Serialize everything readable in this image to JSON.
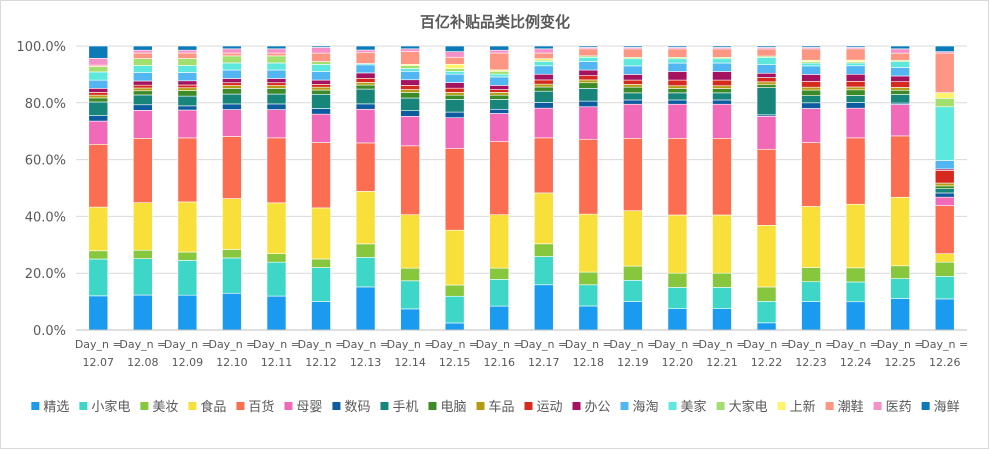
{
  "chart_data": {
    "type": "bar",
    "stacked": "percent",
    "title": "百亿补贴品类比例变化",
    "xlabel": "",
    "ylabel": "",
    "ylim": [
      0,
      100
    ],
    "yticks": [
      "0.0%",
      "20.0%",
      "40.0%",
      "60.0%",
      "80.0%",
      "100.0%"
    ],
    "ytick_values": [
      0,
      20,
      40,
      60,
      80,
      100
    ],
    "grid": true,
    "legend_position": "bottom",
    "categories": [
      "Day_n = 12.07",
      "Day_n = 12.08",
      "Day_n = 12.09",
      "Day_n = 12.10",
      "Day_n = 12.11",
      "Day_n = 12.12",
      "Day_n = 12.13",
      "Day_n = 12.14",
      "Day_n = 12.15",
      "Day_n = 12.16",
      "Day_n = 12.17",
      "Day_n = 12.18",
      "Day_n = 12.19",
      "Day_n = 12.20",
      "Day_n = 12.21",
      "Day_n = 12.22",
      "Day_n = 12.23",
      "Day_n = 12.24",
      "Day_n = 12.25",
      "Day_n = 12.26"
    ],
    "category_lines": [
      [
        "Day_n =",
        "12.07"
      ],
      [
        "Day_n =",
        "12.08"
      ],
      [
        "Day_n =",
        "12.09"
      ],
      [
        "Day_n =",
        "12.10"
      ],
      [
        "Day_n =",
        "12.11"
      ],
      [
        "Day_n =",
        "12.12"
      ],
      [
        "Day_n =",
        "12.13"
      ],
      [
        "Day_n =",
        "12.14"
      ],
      [
        "Day_n =",
        "12.15"
      ],
      [
        "Day_n =",
        "12.16"
      ],
      [
        "Day_n =",
        "12.17"
      ],
      [
        "Day_n =",
        "12.18"
      ],
      [
        "Day_n =",
        "12.19"
      ],
      [
        "Day_n =",
        "12.20"
      ],
      [
        "Day_n =",
        "12.21"
      ],
      [
        "Day_n =",
        "12.22"
      ],
      [
        "Day_n =",
        "12.23"
      ],
      [
        "Day_n =",
        "12.24"
      ],
      [
        "Day_n =",
        "12.25"
      ],
      [
        "Day_n =",
        "12.26"
      ]
    ],
    "series": [
      {
        "name": "精选",
        "color": "#1a9bef",
        "values": [
          12.5,
          12.5,
          12.5,
          13.0,
          12.0,
          10.0,
          16.0,
          7.5,
          2.5,
          8.5,
          16.0,
          8.5,
          10.0,
          7.5,
          7.5,
          2.5,
          10.0,
          10.0,
          11.0,
          11.0
        ]
      },
      {
        "name": "小家电",
        "color": "#3ed7c7",
        "values": [
          13.5,
          13.0,
          12.5,
          12.5,
          12.0,
          12.0,
          11.0,
          10.0,
          9.5,
          9.5,
          10.0,
          7.5,
          7.5,
          7.5,
          7.5,
          7.5,
          7.0,
          7.0,
          7.0,
          8.0
        ]
      },
      {
        "name": "美妆",
        "color": "#86c73e",
        "values": [
          3.0,
          3.0,
          3.0,
          3.0,
          3.0,
          3.0,
          5.0,
          4.5,
          4.0,
          4.0,
          4.5,
          4.5,
          5.0,
          5.0,
          5.0,
          5.0,
          5.0,
          5.0,
          4.5,
          5.0
        ]
      },
      {
        "name": "食品",
        "color": "#f9df3a",
        "values": [
          16.0,
          17.0,
          18.0,
          18.0,
          18.0,
          18.0,
          19.5,
          19.0,
          19.5,
          19.0,
          18.0,
          20.5,
          19.5,
          20.5,
          20.5,
          21.5,
          21.5,
          22.5,
          24.0,
          3.0
        ]
      },
      {
        "name": "百货",
        "color": "#fb6e52",
        "values": [
          23.0,
          23.0,
          23.0,
          22.0,
          23.0,
          23.0,
          18.0,
          24.5,
          29.0,
          26.0,
          19.5,
          26.5,
          25.5,
          27.0,
          27.0,
          26.5,
          22.5,
          23.5,
          21.5,
          17.0
        ]
      },
      {
        "name": "母婴",
        "color": "#f06ab7",
        "values": [
          8.5,
          10.0,
          10.0,
          9.5,
          10.0,
          10.0,
          12.5,
          10.5,
          11.0,
          10.0,
          10.5,
          11.5,
          12.0,
          12.0,
          12.0,
          11.5,
          12.0,
          10.5,
          11.0,
          3.0
        ]
      },
      {
        "name": "数码",
        "color": "#0d5c9f",
        "values": [
          2.0,
          2.0,
          1.5,
          2.0,
          2.0,
          2.0,
          2.0,
          2.0,
          2.0,
          1.5,
          2.0,
          2.0,
          1.5,
          1.5,
          1.5,
          0.5,
          2.0,
          2.0,
          0.5,
          1.5
        ]
      },
      {
        "name": "手机",
        "color": "#17857a",
        "values": [
          5.0,
          3.5,
          3.5,
          3.5,
          3.5,
          5.0,
          5.5,
          4.5,
          4.5,
          3.5,
          4.0,
          4.5,
          2.5,
          2.5,
          2.5,
          9.5,
          2.5,
          2.5,
          3.0,
          1.5
        ]
      },
      {
        "name": "电脑",
        "color": "#3c8a28",
        "values": [
          1.5,
          1.5,
          2.0,
          2.0,
          2.0,
          1.5,
          1.5,
          2.0,
          1.5,
          1.5,
          1.5,
          2.0,
          2.0,
          1.5,
          1.5,
          1.0,
          2.0,
          2.0,
          1.5,
          1.0
        ]
      },
      {
        "name": "车品",
        "color": "#b39b12",
        "values": [
          1.0,
          1.0,
          1.0,
          1.0,
          1.0,
          1.0,
          1.0,
          1.0,
          1.0,
          1.0,
          1.0,
          1.0,
          1.0,
          1.0,
          1.0,
          1.0,
          1.0,
          1.0,
          1.0,
          1.0
        ]
      },
      {
        "name": "运动",
        "color": "#d62a1f",
        "values": [
          1.0,
          1.0,
          1.0,
          1.0,
          1.0,
          1.0,
          1.5,
          1.5,
          1.5,
          1.0,
          1.5,
          1.5,
          1.5,
          2.0,
          2.0,
          1.5,
          2.0,
          2.0,
          2.0,
          4.5
        ]
      },
      {
        "name": "办公",
        "color": "#a3135f",
        "values": [
          1.5,
          1.5,
          1.5,
          1.5,
          1.5,
          1.5,
          2.0,
          2.0,
          2.0,
          1.5,
          2.0,
          2.0,
          2.0,
          3.0,
          3.0,
          1.5,
          2.5,
          2.5,
          2.0,
          0.5
        ]
      },
      {
        "name": "海淘",
        "color": "#52b6f2",
        "values": [
          3.0,
          3.0,
          3.0,
          3.0,
          3.0,
          3.0,
          3.0,
          3.0,
          3.0,
          3.0,
          3.0,
          3.0,
          3.0,
          3.0,
          3.0,
          3.0,
          3.0,
          3.0,
          3.0,
          3.0
        ]
      },
      {
        "name": "美家",
        "color": "#5ce8dd",
        "values": [
          3.0,
          2.5,
          2.5,
          2.5,
          2.5,
          2.5,
          0.5,
          1.0,
          1.0,
          1.0,
          1.5,
          1.5,
          2.5,
          1.5,
          1.5,
          2.5,
          1.0,
          1.0,
          2.0,
          19.0
        ]
      },
      {
        "name": "大家电",
        "color": "#a3df6e",
        "values": [
          2.0,
          2.5,
          2.5,
          2.5,
          2.5,
          1.0,
          0.0,
          1.0,
          1.0,
          1.0,
          0.5,
          0.5,
          0.5,
          0.5,
          0.5,
          0.5,
          0.5,
          0.5,
          0.5,
          3.0
        ]
      },
      {
        "name": "上新",
        "color": "#fff36b",
        "values": [
          0.0,
          0.0,
          0.0,
          0.0,
          0.0,
          0.0,
          0.0,
          0.5,
          1.5,
          0.5,
          0.5,
          0.0,
          0.0,
          0.0,
          0.0,
          0.0,
          0.5,
          0.5,
          0.0,
          2.0
        ]
      },
      {
        "name": "潮鞋",
        "color": "#fd9783",
        "values": [
          0.5,
          2.0,
          2.0,
          1.0,
          1.0,
          3.0,
          4.0,
          4.5,
          2.5,
          6.0,
          2.0,
          2.5,
          3.0,
          3.0,
          3.0,
          2.5,
          4.0,
          4.0,
          2.5,
          14.0
        ]
      },
      {
        "name": "医药",
        "color": "#f591c8",
        "values": [
          2.5,
          1.0,
          1.0,
          1.5,
          1.5,
          2.0,
          1.0,
          1.0,
          2.0,
          1.0,
          1.5,
          0.5,
          0.5,
          0.5,
          0.5,
          0.5,
          0.5,
          0.5,
          1.5,
          0.5
        ]
      },
      {
        "name": "海鲜",
        "color": "#0d7ab8",
        "values": [
          4.5,
          1.5,
          1.5,
          1.0,
          1.0,
          0.5,
          1.5,
          1.0,
          2.0,
          1.5,
          1.0,
          0.5,
          0.5,
          0.5,
          0.5,
          0.5,
          0.5,
          0.5,
          1.0,
          2.0
        ]
      }
    ]
  }
}
